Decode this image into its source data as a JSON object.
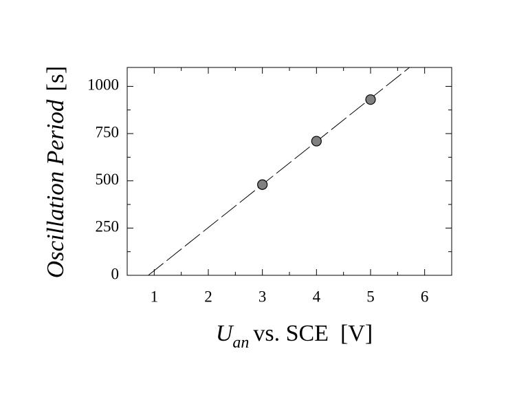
{
  "chart_data": {
    "type": "scatter",
    "x": [
      3,
      4,
      5
    ],
    "values": [
      480,
      710,
      930
    ],
    "color": "#808080",
    "fit": {
      "x": [
        0.89,
        5.72
      ],
      "values": [
        0,
        1100
      ]
    },
    "xlim": [
      0.5,
      6.5
    ],
    "ylim": [
      0,
      1100
    ],
    "xticks": [
      1,
      2,
      3,
      4,
      5,
      6
    ],
    "yticks": [
      0,
      250,
      500,
      750,
      1000
    ],
    "xminorticks": [
      1.5,
      2.5,
      3.5,
      4.5,
      5.5
    ],
    "yminorticks": [
      125,
      375,
      625,
      875
    ],
    "xlabel": {
      "main": "U",
      "subscript": "an",
      "rest": "vs. SCE  [V]"
    },
    "ylabel": {
      "italic": "Oscillation Period",
      "unit": "[s]"
    }
  }
}
